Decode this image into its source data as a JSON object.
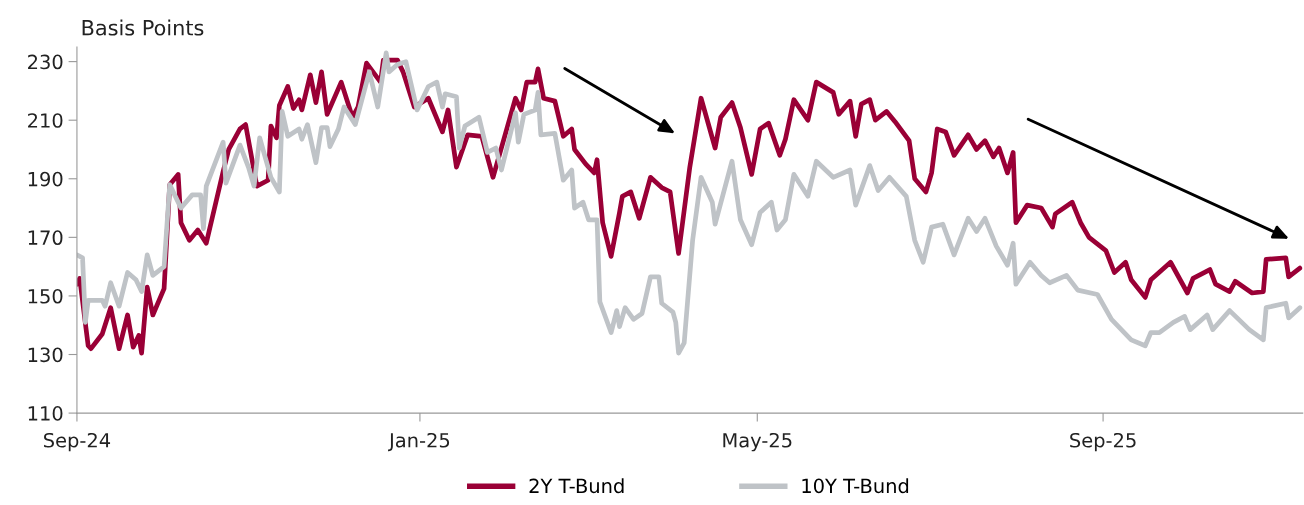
{
  "chart_data": {
    "type": "line",
    "ylabel": "Basis Points",
    "xlim": [
      "2024-09-01",
      "2025-11-11"
    ],
    "xticks": [
      {
        "value": "2024-09-01",
        "label": "Sep-24"
      },
      {
        "value": "2025-01-01",
        "label": "Jan-25"
      },
      {
        "value": "2025-05-01",
        "label": "May-25"
      },
      {
        "value": "2025-09-01",
        "label": "Sep-25"
      }
    ],
    "ylim": [
      110,
      235
    ],
    "yticks": [
      110,
      130,
      150,
      170,
      190,
      210,
      230
    ],
    "grid": false,
    "legend": "bottom",
    "marker": "none",
    "line_style": "solid",
    "series": [
      {
        "name": "2Y T-Bund",
        "color": "#9a0036",
        "x": [
          "2024-09-01",
          "2024-09-02",
          "2024-09-05",
          "2024-09-06",
          "2024-09-10",
          "2024-09-13",
          "2024-09-16",
          "2024-09-19",
          "2024-09-21",
          "2024-09-23",
          "2024-09-24",
          "2024-09-26",
          "2024-09-28",
          "2024-10-02",
          "2024-10-04",
          "2024-10-07",
          "2024-10-08",
          "2024-10-11",
          "2024-10-14",
          "2024-10-17",
          "2024-10-23",
          "2024-10-25",
          "2024-10-29",
          "2024-10-31",
          "2024-11-04",
          "2024-11-08",
          "2024-11-09",
          "2024-11-11",
          "2024-11-12",
          "2024-11-15",
          "2024-11-17",
          "2024-11-19",
          "2024-11-20",
          "2024-11-23",
          "2024-11-25",
          "2024-11-27",
          "2024-11-29",
          "2024-12-04",
          "2024-12-08",
          "2024-12-10",
          "2024-12-13",
          "2024-12-18",
          "2024-12-19",
          "2024-12-24",
          "2024-12-26",
          "2024-12-30",
          "2025-01-04",
          "2025-01-09",
          "2025-01-11",
          "2025-01-14",
          "2025-01-18",
          "2025-01-23",
          "2025-01-27",
          "2025-02-04",
          "2025-02-06",
          "2025-02-08",
          "2025-02-11",
          "2025-02-12",
          "2025-02-14",
          "2025-02-18",
          "2025-02-21",
          "2025-02-24",
          "2025-02-25",
          "2025-03-01",
          "2025-03-04",
          "2025-03-05",
          "2025-03-07",
          "2025-03-10",
          "2025-03-13",
          "2025-03-14",
          "2025-03-17",
          "2025-03-20",
          "2025-03-24",
          "2025-03-28",
          "2025-03-31",
          "2025-04-03",
          "2025-04-07",
          "2025-04-11",
          "2025-04-16",
          "2025-04-18",
          "2025-04-22",
          "2025-04-25",
          "2025-04-29",
          "2025-05-02",
          "2025-05-05",
          "2025-05-09",
          "2025-05-11",
          "2025-05-14",
          "2025-05-19",
          "2025-05-22",
          "2025-05-28",
          "2025-05-30",
          "2025-06-03",
          "2025-06-05",
          "2025-06-07",
          "2025-06-10",
          "2025-06-12",
          "2025-06-16",
          "2025-06-19",
          "2025-06-24",
          "2025-06-26",
          "2025-06-30",
          "2025-07-02",
          "2025-07-04",
          "2025-07-07",
          "2025-07-10",
          "2025-07-15",
          "2025-07-18",
          "2025-07-21",
          "2025-07-24",
          "2025-07-26",
          "2025-07-29",
          "2025-07-31",
          "2025-08-01",
          "2025-08-05",
          "2025-08-10",
          "2025-08-14",
          "2025-08-15",
          "2025-08-21",
          "2025-08-24",
          "2025-08-27",
          "2025-09-02",
          "2025-09-05",
          "2025-09-09",
          "2025-09-11",
          "2025-09-16",
          "2025-09-18",
          "2025-09-25",
          "2025-10-01",
          "2025-10-03",
          "2025-10-09",
          "2025-10-11",
          "2025-10-16",
          "2025-10-18",
          "2025-10-24",
          "2025-10-28",
          "2025-10-29",
          "2025-11-05",
          "2025-11-06",
          "2025-11-10"
        ],
        "values": [
          154,
          156,
          133,
          132,
          137,
          146,
          132,
          143.5,
          132.5,
          136.5,
          130.5,
          153,
          143.5,
          152.5,
          188,
          191.5,
          175,
          169,
          172.5,
          168,
          192.5,
          200,
          207,
          208.5,
          187.5,
          189.5,
          208,
          204,
          215,
          221.5,
          214,
          217,
          213.5,
          225.5,
          216,
          226.5,
          212,
          223,
          211,
          214.5,
          229.5,
          223,
          230.5,
          230.5,
          226.5,
          214.5,
          217.5,
          206,
          213.5,
          194,
          205,
          204.5,
          190.5,
          217.5,
          213.5,
          223,
          223,
          227.5,
          217.5,
          216.5,
          204.5,
          207,
          200,
          195,
          192,
          196.5,
          175,
          163.5,
          178.5,
          184,
          185.5,
          176.5,
          190.5,
          187,
          185.5,
          164.5,
          194,
          217.5,
          200.5,
          211,
          216,
          207.5,
          191.5,
          207,
          209,
          198,
          203.5,
          217,
          210,
          223,
          219.5,
          212,
          216.5,
          204.5,
          215.5,
          217,
          210,
          213,
          209.5,
          203,
          190,
          185.5,
          192,
          207,
          206,
          198,
          205,
          200,
          203,
          197.5,
          200.5,
          192,
          199,
          175,
          181,
          180,
          173.5,
          178,
          182,
          175,
          170,
          165.5,
          158,
          161.5,
          155.5,
          149.5,
          155.5,
          161.5,
          151,
          156,
          159,
          154,
          151.5,
          155,
          151,
          151.5,
          162.5,
          163,
          156.5,
          159.5
        ]
      },
      {
        "name": "10Y T-Bund",
        "color": "#bfc3c7",
        "x": [
          "2024-09-01",
          "2024-09-03",
          "2024-09-04",
          "2024-09-05",
          "2024-09-10",
          "2024-09-11",
          "2024-09-13",
          "2024-09-16",
          "2024-09-19",
          "2024-09-22",
          "2024-09-24",
          "2024-09-26",
          "2024-09-28",
          "2024-10-02",
          "2024-10-04",
          "2024-10-08",
          "2024-10-12",
          "2024-10-15",
          "2024-10-16",
          "2024-10-17",
          "2024-10-23",
          "2024-10-24",
          "2024-10-29",
          "2024-11-01",
          "2024-11-03",
          "2024-11-05",
          "2024-11-09",
          "2024-11-12",
          "2024-11-13",
          "2024-11-15",
          "2024-11-19",
          "2024-11-20",
          "2024-11-22",
          "2024-11-25",
          "2024-11-27",
          "2024-11-29",
          "2024-11-30",
          "2024-12-03",
          "2024-12-05",
          "2024-12-09",
          "2024-12-14",
          "2024-12-17",
          "2024-12-20",
          "2024-12-21",
          "2024-12-24",
          "2024-12-27",
          "2024-12-31",
          "2025-01-04",
          "2025-01-07",
          "2025-01-09",
          "2025-01-10",
          "2025-01-14",
          "2025-01-15",
          "2025-01-17",
          "2025-01-22",
          "2025-01-25",
          "2025-01-28",
          "2025-01-30",
          "2025-02-04",
          "2025-02-05",
          "2025-02-07",
          "2025-02-11",
          "2025-02-12",
          "2025-02-13",
          "2025-02-18",
          "2025-02-21",
          "2025-02-24",
          "2025-02-25",
          "2025-02-28",
          "2025-03-02",
          "2025-03-05",
          "2025-03-06",
          "2025-03-10",
          "2025-03-12",
          "2025-03-13",
          "2025-03-15",
          "2025-03-18",
          "2025-03-21",
          "2025-03-24",
          "2025-03-27",
          "2025-03-28",
          "2025-04-01",
          "2025-04-02",
          "2025-04-03",
          "2025-04-05",
          "2025-04-08",
          "2025-04-11",
          "2025-04-15",
          "2025-04-16",
          "2025-04-22",
          "2025-04-25",
          "2025-04-29",
          "2025-05-02",
          "2025-05-06",
          "2025-05-08",
          "2025-05-11",
          "2025-05-14",
          "2025-05-19",
          "2025-05-22",
          "2025-05-28",
          "2025-06-03",
          "2025-06-05",
          "2025-06-10",
          "2025-06-13",
          "2025-06-17",
          "2025-06-23",
          "2025-06-26",
          "2025-06-29",
          "2025-07-02",
          "2025-07-06",
          "2025-07-10",
          "2025-07-15",
          "2025-07-18",
          "2025-07-21",
          "2025-07-25",
          "2025-07-29",
          "2025-07-31",
          "2025-08-01",
          "2025-08-06",
          "2025-08-10",
          "2025-08-13",
          "2025-08-19",
          "2025-08-23",
          "2025-08-30",
          "2025-09-04",
          "2025-09-11",
          "2025-09-16",
          "2025-09-18",
          "2025-09-21",
          "2025-09-26",
          "2025-09-30",
          "2025-10-02",
          "2025-10-08",
          "2025-10-10",
          "2025-10-16",
          "2025-10-23",
          "2025-10-28",
          "2025-10-29",
          "2025-11-05",
          "2025-11-06",
          "2025-11-10"
        ],
        "values": [
          164,
          163,
          141,
          148.5,
          148.5,
          146.5,
          154.5,
          146.5,
          158,
          155.5,
          151.5,
          164,
          157,
          160,
          188,
          180,
          184.5,
          184.5,
          173,
          187.5,
          202.5,
          188.5,
          201.5,
          194,
          187.5,
          204,
          190.5,
          185.5,
          213,
          204.5,
          207,
          203.5,
          208.5,
          195.5,
          207.5,
          207.5,
          201,
          207,
          214.5,
          208.5,
          226.5,
          214.5,
          233,
          226.5,
          229,
          230,
          213.5,
          221.5,
          223,
          214.5,
          219,
          218,
          200.5,
          208,
          211,
          199,
          200.5,
          193,
          212.5,
          202.5,
          212,
          213.5,
          219.5,
          205,
          205.5,
          189.5,
          193,
          180,
          182,
          176,
          176,
          148,
          137.5,
          145,
          139.5,
          146,
          142,
          144,
          156.5,
          156.5,
          147.5,
          144.5,
          141,
          130.5,
          134,
          169,
          190.5,
          182,
          174.5,
          196,
          176,
          167.5,
          178.5,
          182,
          172.5,
          176,
          191.5,
          184,
          196,
          190.5,
          193,
          181,
          194.5,
          186,
          190.5,
          184,
          169,
          161.5,
          173.5,
          174.5,
          164,
          176.5,
          172,
          176.5,
          167,
          160.5,
          168,
          154,
          161.5,
          157,
          154.5,
          157,
          152,
          150.5,
          142,
          135,
          133,
          137.5,
          137.5,
          141,
          143,
          138.5,
          143.5,
          138.5,
          145,
          138.5,
          135,
          146,
          147.5,
          142.5,
          146
        ]
      }
    ]
  }
}
